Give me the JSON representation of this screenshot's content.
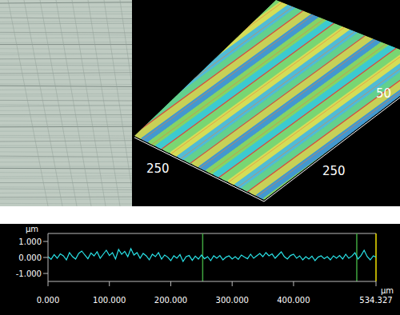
{
  "surface_3d": {
    "axis_texts": [
      "250",
      "250",
      "50"
    ]
  },
  "chart_data": {
    "type": "line",
    "y_label": "µm",
    "x_label": "µm",
    "x": [
      0,
      5,
      10,
      15,
      20,
      25,
      30,
      35,
      40,
      45,
      50,
      55,
      60,
      65,
      70,
      75,
      80,
      85,
      90,
      95,
      100,
      105,
      110,
      115,
      120,
      125,
      130,
      135,
      140,
      145,
      150,
      155,
      160,
      165,
      170,
      175,
      180,
      185,
      190,
      195,
      200,
      205,
      210,
      215,
      220,
      225,
      230,
      235,
      240,
      245,
      250,
      255,
      260,
      265,
      270,
      275,
      280,
      285,
      290,
      295,
      300,
      305,
      310,
      315,
      320,
      325,
      330,
      335,
      340,
      345,
      350,
      355,
      360,
      365,
      370,
      375,
      380,
      385,
      390,
      395,
      400,
      405,
      410,
      415,
      420,
      425,
      430,
      435,
      440,
      445,
      450,
      455,
      460,
      465,
      470,
      475,
      480,
      485,
      490,
      495,
      500,
      505,
      510,
      515,
      520,
      525,
      530,
      534.327
    ],
    "series": [
      {
        "color": "#29e3e8",
        "values": [
          0.05,
          -0.12,
          0.18,
          -0.05,
          0.22,
          0.1,
          -0.15,
          0.3,
          0.05,
          -0.1,
          0.25,
          0.4,
          0.15,
          -0.08,
          0.28,
          0.1,
          0.35,
          -0.05,
          0.2,
          0.45,
          0.12,
          0.3,
          -0.1,
          0.5,
          0.2,
          0.38,
          0.05,
          0.55,
          0.15,
          0.3,
          -0.05,
          0.25,
          0.1,
          -0.15,
          0.2,
          0.05,
          0.3,
          -0.1,
          0.15,
          0.02,
          -0.2,
          0.1,
          -0.05,
          0.18,
          -0.25,
          0.05,
          0.12,
          -0.18,
          0.08,
          -0.1,
          0.15,
          -0.08,
          0.05,
          -0.2,
          0.1,
          -0.05,
          0.12,
          -0.15,
          0.02,
          0.1,
          -0.1,
          0.05,
          -0.12,
          0.15,
          0.02,
          -0.08,
          0.2,
          -0.05,
          0.1,
          0.25,
          0.05,
          0.3,
          0.1,
          0.22,
          -0.05,
          0.15,
          0.35,
          0.05,
          -0.1,
          0.12,
          0.2,
          -0.05,
          0.1,
          -0.15,
          0.05,
          -0.1,
          0.08,
          -0.2,
          0.02,
          0.1,
          -0.08,
          0.05,
          -0.15,
          0.1,
          -0.05,
          0.12,
          -0.1,
          0.2,
          -0.05,
          0.08,
          0.3,
          -0.1,
          0.12,
          0.45,
          0.05,
          -0.15,
          0.1,
          0.02
        ]
      }
    ],
    "xlim": [
      0,
      534.327
    ],
    "xticks": [
      {
        "value": 0,
        "label": "0.000"
      },
      {
        "value": 100,
        "label": "100.000"
      },
      {
        "value": 200,
        "label": "200.000"
      },
      {
        "value": 300,
        "label": "300.000"
      },
      {
        "value": 400,
        "label": "400.000"
      },
      {
        "value": 534.327,
        "label": "534.327"
      }
    ],
    "ylim": [
      -1.5,
      1.5
    ],
    "yticks": [
      {
        "value": 1,
        "label": "1.000"
      },
      {
        "value": 0,
        "label": "0.000"
      },
      {
        "value": -1,
        "label": "-1.000"
      }
    ],
    "reference_lines": [
      {
        "x": 252,
        "color": "#3fa53f"
      },
      {
        "x": 503,
        "color": "#3fa53f"
      },
      {
        "x": 534.327,
        "color": "#f2e200"
      }
    ],
    "grid": false
  }
}
